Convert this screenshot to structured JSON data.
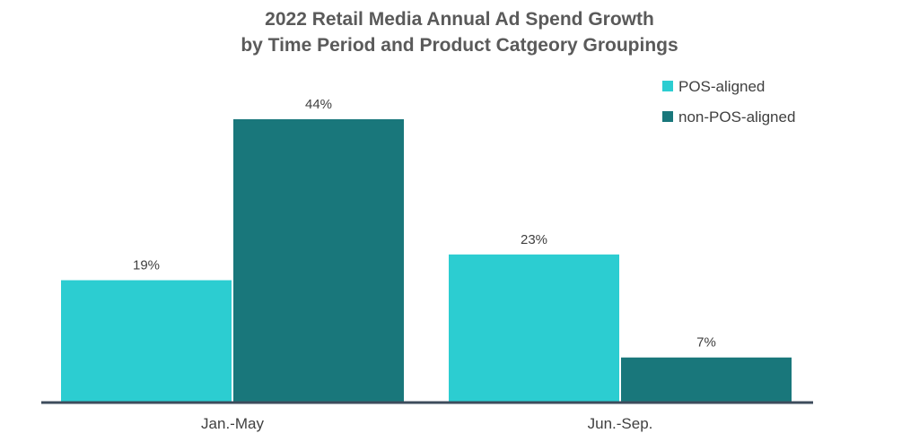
{
  "chart_data": {
    "type": "bar",
    "title_lines": [
      "2022 Retail Media Annual Ad Spend Growth",
      "by Time Period and Product Catgeory Groupings"
    ],
    "categories": [
      "Jan.-May",
      "Jun.-Sep."
    ],
    "series": [
      {
        "name": "POS-aligned",
        "color": "#2ccdd1",
        "values": [
          19,
          23
        ],
        "labels": [
          "19%",
          "23%"
        ]
      },
      {
        "name": "non-POS-aligned",
        "color": "#19777b",
        "values": [
          44,
          7
        ],
        "labels": [
          "44%",
          "7%"
        ]
      }
    ],
    "xlabel": "",
    "ylabel": "",
    "ylim": [
      0,
      44
    ],
    "unit": "%",
    "grid": false,
    "legend_position": "top-right",
    "axis_color": "#3d4c5c"
  }
}
